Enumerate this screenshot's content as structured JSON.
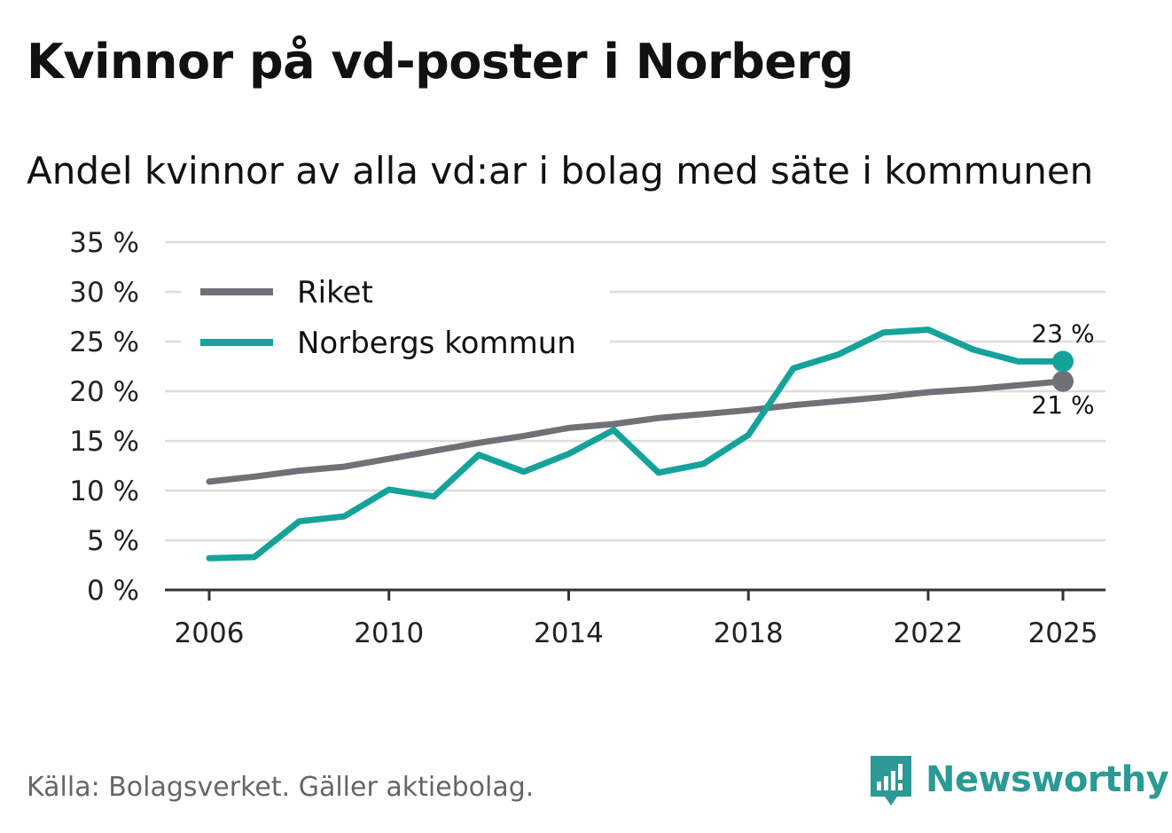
{
  "header": {
    "title": "Kvinnor på vd-poster i Norberg",
    "subtitle": "Andel kvinnor av alla vd:ar i bolag med säte i kommunen"
  },
  "footer": {
    "source": "Källa: Bolagsverket. Gäller aktiebolag.",
    "brand": "Newsworthy",
    "brand_icon": "newsworthy-logo-icon"
  },
  "colors": {
    "riket": "#707076",
    "norberg": "#14a39a",
    "grid": "#dddddd",
    "axis": "#333333",
    "brand": "#2b9a94"
  },
  "chart_data": {
    "type": "line",
    "title": "Kvinnor på vd-poster i Norberg",
    "subtitle": "Andel kvinnor av alla vd:ar i bolag med säte i kommunen",
    "xlabel": "",
    "ylabel": "",
    "x": [
      2006,
      2007,
      2008,
      2009,
      2010,
      2011,
      2012,
      2013,
      2014,
      2015,
      2016,
      2017,
      2018,
      2019,
      2020,
      2021,
      2022,
      2023,
      2024,
      2025
    ],
    "xlim": [
      2006,
      2025
    ],
    "ylim": [
      0,
      35
    ],
    "y_ticks": [
      0,
      5,
      10,
      15,
      20,
      25,
      30,
      35
    ],
    "y_tick_labels": [
      "0 %",
      "5 %",
      "10 %",
      "15 %",
      "20 %",
      "25 %",
      "30 %",
      "35 %"
    ],
    "x_ticks": [
      2006,
      2010,
      2014,
      2018,
      2022,
      2025
    ],
    "x_tick_labels": [
      "2006",
      "2010",
      "2014",
      "2018",
      "2022",
      "2025"
    ],
    "grid": true,
    "legend_position": "top-left",
    "series": [
      {
        "name": "Riket",
        "color": "#707076",
        "values": [
          10.9,
          11.4,
          12.0,
          12.4,
          13.2,
          14.0,
          14.8,
          15.5,
          16.3,
          16.7,
          17.3,
          17.7,
          18.1,
          18.6,
          19.0,
          19.4,
          19.9,
          20.2,
          20.6,
          21.0
        ],
        "end_label": "21 %"
      },
      {
        "name": "Norbergs kommun",
        "color": "#14a39a",
        "values": [
          3.2,
          3.3,
          6.9,
          7.4,
          10.1,
          9.4,
          13.6,
          11.9,
          13.7,
          16.1,
          11.8,
          12.7,
          15.6,
          22.3,
          23.7,
          25.9,
          26.2,
          24.2,
          23.0,
          23.0
        ],
        "end_label": "23 %"
      }
    ]
  }
}
